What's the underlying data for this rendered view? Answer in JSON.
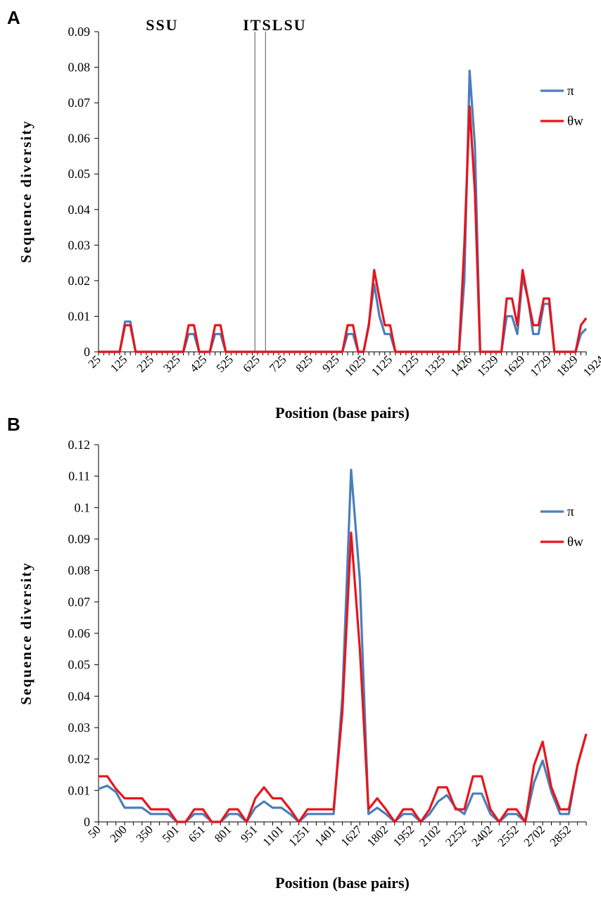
{
  "chart_data": [
    {
      "panel": "A",
      "type": "line",
      "xlabel": "Position (base pairs)",
      "ylabel": "Sequence diversity",
      "ylim": [
        0,
        0.09
      ],
      "yticks": [
        "0",
        "0.01",
        "0.02",
        "0.03",
        "0.04",
        "0.05",
        "0.06",
        "0.07",
        "0.08",
        "0.09"
      ],
      "xtick_labels": [
        "25",
        "125",
        "225",
        "325",
        "425",
        "525",
        "625",
        "725",
        "825",
        "925",
        "1025",
        "1125",
        "1225",
        "1325",
        "1426",
        "1529",
        "1629",
        "1729",
        "1829",
        "1924"
      ],
      "regions": [
        {
          "label": "SSU",
          "at_index": 12
        },
        {
          "label": "ITS",
          "at_index": 30
        },
        {
          "label": "LSU",
          "at_index": 36
        }
      ],
      "its_bounds_index": [
        29.5,
        31.5
      ],
      "legend_position": "right",
      "series": [
        {
          "name": "π",
          "color": "#4a7ebb",
          "values": [
            0,
            0,
            0,
            0,
            0,
            0.0085,
            0.0085,
            0,
            0,
            0,
            0,
            0,
            0,
            0,
            0,
            0,
            0,
            0.005,
            0.005,
            0,
            0,
            0,
            0.005,
            0.005,
            0,
            0,
            0,
            0,
            0,
            0,
            0,
            0,
            0,
            0,
            0,
            0,
            0,
            0,
            0,
            0,
            0,
            0,
            0,
            0,
            0,
            0,
            0,
            0.005,
            0.005,
            0,
            0,
            0.008,
            0.019,
            0.01,
            0.005,
            0.005,
            0,
            0,
            0,
            0,
            0,
            0,
            0,
            0,
            0,
            0,
            0,
            0,
            0,
            0.02,
            0.079,
            0.058,
            0,
            0,
            0,
            0,
            0,
            0.01,
            0.01,
            0.005,
            0.021,
            0.015,
            0.005,
            0.005,
            0.0135,
            0.0135,
            0,
            0,
            0,
            0,
            0,
            0.005,
            0.0065
          ]
        },
        {
          "name": "θw",
          "color": "#e8141b",
          "values": [
            0,
            0,
            0,
            0,
            0,
            0.0075,
            0.0075,
            0,
            0,
            0,
            0,
            0,
            0,
            0,
            0,
            0,
            0,
            0.0075,
            0.0075,
            0,
            0,
            0,
            0.0075,
            0.0075,
            0,
            0,
            0,
            0,
            0,
            0,
            0,
            0,
            0,
            0,
            0,
            0,
            0,
            0,
            0,
            0,
            0,
            0,
            0,
            0,
            0,
            0,
            0,
            0.0075,
            0.0075,
            0,
            0,
            0.0075,
            0.023,
            0.015,
            0.0075,
            0.0075,
            0,
            0,
            0,
            0,
            0,
            0,
            0,
            0,
            0,
            0,
            0,
            0,
            0,
            0.03,
            0.069,
            0.045,
            0,
            0,
            0,
            0,
            0,
            0.015,
            0.015,
            0.0075,
            0.023,
            0.015,
            0.0075,
            0.0075,
            0.015,
            0.015,
            0,
            0,
            0,
            0,
            0,
            0.0075,
            0.0095
          ]
        }
      ]
    },
    {
      "panel": "B",
      "type": "line",
      "xlabel": "Position (base pairs)",
      "ylabel": "Sequence diversity",
      "ylim": [
        0,
        0.12
      ],
      "yticks": [
        "0",
        "0.01",
        "0.02",
        "0.03",
        "0.04",
        "0.05",
        "0.06",
        "0.07",
        "0.08",
        "0.09",
        "0.1",
        "0.11",
        "0.12"
      ],
      "xtick_labels": [
        "50",
        "200",
        "350",
        "501",
        "651",
        "801",
        "951",
        "1101",
        "1251",
        "1401",
        "1627",
        "1802",
        "1952",
        "2102",
        "2252",
        "2402",
        "2552",
        "2702",
        "2852"
      ],
      "legend_position": "right",
      "series": [
        {
          "name": "π",
          "color": "#4a7ebb",
          "values": [
            0.0105,
            0.0115,
            0.0095,
            0.0045,
            0.0045,
            0.0045,
            0.0025,
            0.0025,
            0.0025,
            0,
            0,
            0.0025,
            0.0025,
            0,
            0,
            0.0025,
            0.0025,
            0,
            0.0045,
            0.0065,
            0.0045,
            0.0045,
            0.0025,
            0,
            0.0025,
            0.0025,
            0.0025,
            0.0025,
            0.04,
            0.112,
            0.077,
            0.0025,
            0.0045,
            0.0025,
            0,
            0.0025,
            0.0025,
            0,
            0.0025,
            0.0065,
            0.0085,
            0.0045,
            0.0025,
            0.009,
            0.009,
            0.0025,
            0,
            0.0025,
            0.0025,
            0,
            0.0125,
            0.0195,
            0.0095,
            0.0025,
            0.0025,
            0.018,
            0.028
          ]
        },
        {
          "name": "θw",
          "color": "#e8141b",
          "values": [
            0.0145,
            0.0145,
            0.0105,
            0.0075,
            0.0075,
            0.0075,
            0.004,
            0.004,
            0.004,
            0,
            0,
            0.004,
            0.004,
            0,
            0,
            0.004,
            0.004,
            0,
            0.0075,
            0.011,
            0.0075,
            0.0075,
            0.004,
            0,
            0.004,
            0.004,
            0.004,
            0.004,
            0.035,
            0.092,
            0.055,
            0.004,
            0.0075,
            0.004,
            0,
            0.004,
            0.004,
            0,
            0.004,
            0.011,
            0.011,
            0.004,
            0.004,
            0.0145,
            0.0145,
            0.004,
            0,
            0.004,
            0.004,
            0,
            0.018,
            0.0255,
            0.011,
            0.004,
            0.004,
            0.018,
            0.028
          ]
        }
      ]
    }
  ],
  "panels": [
    {
      "letter": "A"
    },
    {
      "letter": "B"
    }
  ]
}
